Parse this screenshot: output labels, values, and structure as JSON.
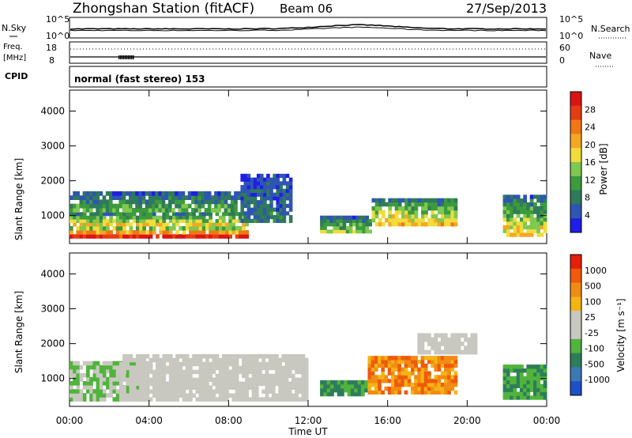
{
  "header": {
    "station": "Zhongshan Station (fitACF)",
    "beam": "Beam 06",
    "date": "27/Sep/2013"
  },
  "sky_panel": {
    "left_label": "N.Sky",
    "right_label": "N.Search",
    "ticks_left": [
      "10^5",
      "10^0"
    ],
    "ticks_right": [
      "10^5",
      "10^0"
    ]
  },
  "freq_panel": {
    "left_label_1": "Freq.",
    "left_label_2": "[MHz]",
    "right_label": "Nave",
    "ticks_left": [
      "18",
      "8"
    ],
    "ticks_right": [
      "60",
      "0"
    ]
  },
  "cpid": {
    "label": "CPID",
    "text": "normal (fast stereo) 153"
  },
  "time_axis": {
    "label": "Time UT",
    "ticks": [
      "00:00",
      "04:00",
      "08:00",
      "12:00",
      "16:00",
      "20:00",
      "00:00"
    ]
  },
  "chart_data": [
    {
      "type": "heatmap",
      "name": "power",
      "ylabel": "Slant Range [km]",
      "yticks": [
        1000,
        2000,
        3000,
        4000
      ],
      "ylim": [
        200,
        4600
      ],
      "xlim_hours": [
        0,
        24
      ],
      "colorbar": {
        "label": "Power [dB]",
        "ticks": [
          "4",
          "8",
          "12",
          "16",
          "20",
          "24",
          "28"
        ],
        "colors": [
          "#1e1ee6",
          "#2f55b4",
          "#2f7a5a",
          "#3c9b3c",
          "#80c850",
          "#f0dc3c",
          "#f5a623",
          "#f07814",
          "#e63c14",
          "#dc1414"
        ]
      },
      "regions": [
        {
          "t0": 0.0,
          "t1": 9.0,
          "r0": 350,
          "r1": 700,
          "level": 0.95
        },
        {
          "t0": 0.0,
          "t1": 9.0,
          "r0": 700,
          "r1": 1100,
          "level": 0.6
        },
        {
          "t0": 0.0,
          "t1": 8.6,
          "r0": 1100,
          "r1": 1700,
          "level": 0.35
        },
        {
          "t0": 8.6,
          "t1": 11.2,
          "r0": 800,
          "r1": 2200,
          "level": 0.2
        },
        {
          "t0": 12.6,
          "t1": 15.2,
          "r0": 500,
          "r1": 1000,
          "level": 0.45
        },
        {
          "t0": 15.2,
          "t1": 19.5,
          "r0": 700,
          "r1": 1500,
          "level": 0.65
        },
        {
          "t0": 21.8,
          "t1": 24.0,
          "r0": 400,
          "r1": 1600,
          "level": 0.6
        }
      ]
    },
    {
      "type": "heatmap",
      "name": "velocity",
      "ylabel": "Slant Range [km]",
      "yticks": [
        1000,
        2000,
        3000,
        4000
      ],
      "ylim": [
        200,
        4600
      ],
      "xlim_hours": [
        0,
        24
      ],
      "colorbar": {
        "label": "Velocity [m s⁻¹]",
        "ticks": [
          "1000",
          "500",
          "100",
          "25",
          "-25",
          "-100",
          "-500",
          "-1000"
        ],
        "colors": [
          "#1e50c8",
          "#3c78b4",
          "#2e7d5a",
          "#50b43c",
          "#c8c8c0",
          "#c8c8c0",
          "#f5b414",
          "#f08c14",
          "#f05a0a",
          "#e61e0a"
        ]
      },
      "regions": [
        {
          "t0": 0.0,
          "t1": 4.0,
          "r0": 350,
          "r1": 1500,
          "level": "green"
        },
        {
          "t0": 2.5,
          "t1": 12.0,
          "r0": 350,
          "r1": 1700,
          "level": "gray"
        },
        {
          "t0": 12.6,
          "t1": 15.0,
          "r0": 500,
          "r1": 950,
          "level": "darkgreen"
        },
        {
          "t0": 15.0,
          "t1": 19.5,
          "r0": 550,
          "r1": 1650,
          "level": "orange"
        },
        {
          "t0": 17.5,
          "t1": 20.5,
          "r0": 1700,
          "r1": 2300,
          "level": "gray"
        },
        {
          "t0": 21.8,
          "t1": 24.0,
          "r0": 400,
          "r1": 1400,
          "level": "darkgreen"
        }
      ]
    }
  ]
}
